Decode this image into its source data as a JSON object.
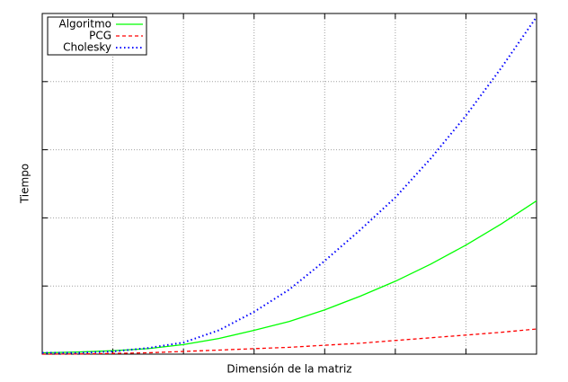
{
  "chart_data": {
    "type": "line",
    "x_label": "Dimensión de la matriz",
    "y_label": "Tiempo",
    "x": [
      0,
      0.5,
      1,
      1.5,
      2,
      2.5,
      3,
      3.5,
      4,
      4.5,
      5,
      5.5,
      6,
      6.5,
      7
    ],
    "series": [
      {
        "name": "Algoritmo",
        "color": "#00ff00",
        "dash": "solid",
        "values": [
          0.02,
          0.03,
          0.05,
          0.08,
          0.14,
          0.23,
          0.35,
          0.48,
          0.65,
          0.85,
          1.07,
          1.32,
          1.6,
          1.91,
          2.25
        ]
      },
      {
        "name": "PCG",
        "color": "#ff0000",
        "dash": "dashed",
        "values": [
          0,
          0.003,
          0.01,
          0.02,
          0.04,
          0.06,
          0.08,
          0.1,
          0.13,
          0.16,
          0.2,
          0.24,
          0.28,
          0.32,
          0.37
        ]
      },
      {
        "name": "Cholesky",
        "color": "#0000ff",
        "dash": "dotted",
        "values": [
          0.02,
          0.02,
          0.04,
          0.09,
          0.17,
          0.35,
          0.62,
          0.95,
          1.37,
          1.82,
          2.3,
          2.87,
          3.5,
          4.2,
          4.95
        ]
      }
    ],
    "xlim": [
      0,
      7
    ],
    "xticks": [
      0,
      1,
      2,
      3,
      4,
      5,
      6,
      7
    ],
    "ylim": [
      0,
      5
    ],
    "yticks": [
      0,
      1,
      2,
      3,
      4,
      5
    ],
    "grid": true,
    "legend": "top-left"
  }
}
